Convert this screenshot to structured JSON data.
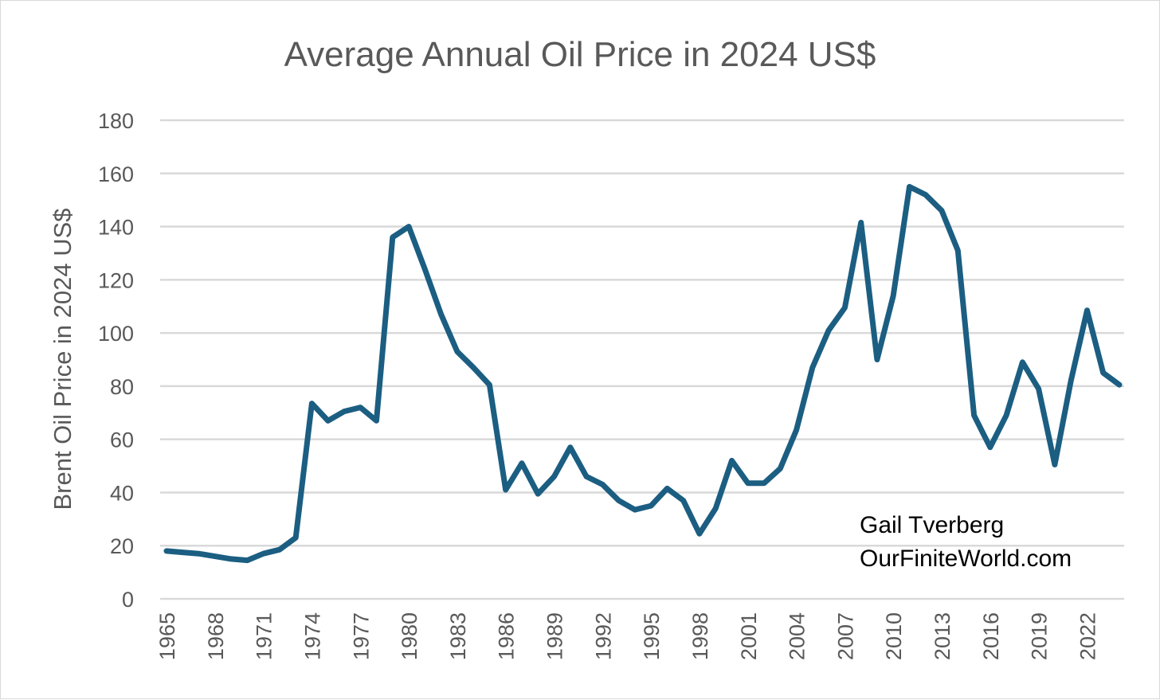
{
  "chart_data": {
    "type": "line",
    "title": "Average Annual Oil Price in 2024 US$",
    "xlabel": "",
    "ylabel": "Brent Oil Price in 2024 US$",
    "ylim": [
      0,
      180
    ],
    "yticks": [
      0,
      20,
      40,
      60,
      80,
      100,
      120,
      140,
      160,
      180
    ],
    "xlim": [
      1965,
      2024
    ],
    "xtick_labels": [
      "1965",
      "1968",
      "1971",
      "1974",
      "1977",
      "1980",
      "1983",
      "1986",
      "1989",
      "1992",
      "1995",
      "1998",
      "2001",
      "2004",
      "2007",
      "2010",
      "2013",
      "2016",
      "2019",
      "2022"
    ],
    "grid": "horizontal",
    "legend": "none",
    "line_color": "#1b5e82",
    "grid_color": "#d9d9d9",
    "text_color": "#595959",
    "series": [
      {
        "x": [
          1965,
          1966,
          1967,
          1968,
          1969,
          1970,
          1971,
          1972,
          1973,
          1974,
          1975,
          1976,
          1977,
          1978,
          1979,
          1980,
          1981,
          1982,
          1983,
          1984,
          1985,
          1986,
          1987,
          1988,
          1989,
          1990,
          1991,
          1992,
          1993,
          1994,
          1995,
          1996,
          1997,
          1998,
          1999,
          2000,
          2001,
          2002,
          2003,
          2004,
          2005,
          2006,
          2007,
          2008,
          2009,
          2010,
          2011,
          2012,
          2013,
          2014,
          2015,
          2016,
          2017,
          2018,
          2019,
          2020,
          2021,
          2022,
          2023,
          2024
        ],
        "y": [
          18,
          17.5,
          17,
          16,
          15,
          14.5,
          17,
          18.5,
          23,
          73.5,
          67,
          70.5,
          72,
          67,
          136,
          140,
          124,
          107,
          93,
          87,
          80.5,
          41,
          51,
          39.5,
          46,
          57,
          46,
          43,
          37,
          33.5,
          35,
          41.5,
          37,
          24.5,
          34,
          52,
          43.5,
          43.5,
          49,
          63.5,
          87,
          101,
          109.5,
          141.5,
          90,
          114,
          155,
          152,
          146,
          131,
          69,
          57,
          69,
          89,
          79,
          50.5,
          82,
          108.5,
          85,
          80.5
        ]
      }
    ]
  },
  "annotation": {
    "line1": "Gail Tverberg",
    "line2": "OurFiniteWorld.com"
  }
}
